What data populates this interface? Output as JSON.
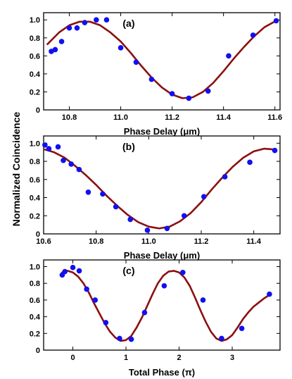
{
  "figure": {
    "ylabel": "Normalized Coincidence",
    "colors": {
      "fit": "#8b1010",
      "points": "#1010f0",
      "axis": "#000000"
    }
  },
  "chart_data": [
    {
      "type": "scatter",
      "panel_label": "(a)",
      "xlabel": "Phase Delay (μm)",
      "xlim": [
        10.7,
        11.62
      ],
      "ylim": [
        0.0,
        1.08
      ],
      "xticks": [
        10.8,
        11.0,
        11.2,
        11.4,
        11.6
      ],
      "yticks": [
        0,
        0.2,
        0.4,
        0.6,
        0.8,
        1.0
      ],
      "xtick_labels": [
        "10.8",
        "11.0",
        "11.2",
        "11.4",
        "11.6"
      ],
      "ytick_labels": [
        "0",
        "0.2",
        "0.4",
        "0.6",
        "0.8",
        "1.0"
      ],
      "series": [
        {
          "kind": "points",
          "x": [
            10.73,
            10.745,
            10.77,
            10.8,
            10.83,
            10.86,
            10.905,
            10.945,
            11.0,
            11.06,
            11.12,
            11.2,
            11.265,
            11.34,
            11.42,
            11.515,
            11.605
          ],
          "y": [
            0.65,
            0.67,
            0.76,
            0.91,
            0.91,
            0.97,
            1.0,
            1.0,
            0.69,
            0.53,
            0.34,
            0.18,
            0.13,
            0.21,
            0.6,
            0.83,
            0.99
          ]
        },
        {
          "kind": "fit",
          "x": [
            10.715,
            10.76,
            10.8,
            10.84,
            10.88,
            10.92,
            10.96,
            11.0,
            11.04,
            11.08,
            11.12,
            11.16,
            11.2,
            11.24,
            11.28,
            11.32,
            11.36,
            11.4,
            11.44,
            11.48,
            11.52,
            11.56,
            11.605
          ],
          "y": [
            0.73,
            0.86,
            0.94,
            0.98,
            0.98,
            0.94,
            0.86,
            0.76,
            0.63,
            0.49,
            0.36,
            0.25,
            0.17,
            0.13,
            0.14,
            0.2,
            0.3,
            0.43,
            0.57,
            0.7,
            0.82,
            0.92,
            0.99
          ]
        }
      ]
    },
    {
      "type": "scatter",
      "panel_label": "(b)",
      "xlabel": "Phase Delay (μm)",
      "xlim": [
        10.6,
        11.5
      ],
      "ylim": [
        0.0,
        1.08
      ],
      "xticks": [
        10.6,
        10.8,
        11.0,
        11.2,
        11.4
      ],
      "yticks": [
        0,
        0.2,
        0.4,
        0.6,
        0.8,
        1.0
      ],
      "xtick_labels": [
        "10.6",
        "10.8",
        "11.0",
        "11.2",
        "11.4"
      ],
      "ytick_labels": [
        "0",
        "0.2",
        "0.4",
        "0.6",
        "0.8",
        "1.0"
      ],
      "series": [
        {
          "kind": "points",
          "x": [
            10.605,
            10.62,
            10.655,
            10.675,
            10.705,
            10.735,
            10.77,
            10.825,
            10.875,
            10.93,
            10.995,
            11.07,
            11.135,
            11.21,
            11.29,
            11.385,
            11.48
          ],
          "y": [
            0.98,
            0.94,
            0.96,
            0.81,
            0.77,
            0.71,
            0.46,
            0.44,
            0.3,
            0.16,
            0.04,
            0.06,
            0.2,
            0.41,
            0.63,
            0.79,
            0.92
          ]
        },
        {
          "kind": "fit",
          "x": [
            10.605,
            10.64,
            10.68,
            10.72,
            10.76,
            10.8,
            10.84,
            10.88,
            10.92,
            10.96,
            11.0,
            11.04,
            11.08,
            11.12,
            11.16,
            11.2,
            11.24,
            11.28,
            11.32,
            11.36,
            11.4,
            11.44,
            11.48
          ],
          "y": [
            0.93,
            0.9,
            0.84,
            0.75,
            0.65,
            0.54,
            0.42,
            0.31,
            0.21,
            0.13,
            0.08,
            0.06,
            0.08,
            0.14,
            0.23,
            0.35,
            0.49,
            0.62,
            0.74,
            0.84,
            0.91,
            0.94,
            0.93
          ]
        }
      ]
    },
    {
      "type": "scatter",
      "panel_label": "(c)",
      "xlabel": "Total Phase (π)",
      "xlim": [
        -0.55,
        3.9
      ],
      "ylim": [
        0.0,
        1.08
      ],
      "xticks": [
        0,
        1,
        2,
        3
      ],
      "yticks": [
        0,
        0.2,
        0.4,
        0.6,
        0.8,
        1.0
      ],
      "xtick_labels": [
        "0",
        "1",
        "2",
        "3"
      ],
      "ytick_labels": [
        "0",
        "0.2",
        "0.4",
        "0.6",
        "0.8",
        "1.0"
      ],
      "series": [
        {
          "kind": "points",
          "x": [
            -0.2,
            -0.15,
            0.0,
            0.12,
            0.26,
            0.42,
            0.62,
            0.88,
            1.1,
            1.35,
            1.72,
            2.07,
            2.45,
            2.8,
            3.18,
            3.7
          ],
          "y": [
            0.9,
            0.94,
            0.99,
            0.95,
            0.73,
            0.6,
            0.33,
            0.14,
            0.13,
            0.45,
            0.77,
            0.93,
            0.6,
            0.14,
            0.26,
            0.67
          ]
        },
        {
          "kind": "fit",
          "x": [
            -0.2,
            -0.1,
            0.0,
            0.1,
            0.2,
            0.3,
            0.4,
            0.5,
            0.6,
            0.7,
            0.8,
            0.9,
            1.0,
            1.1,
            1.2,
            1.3,
            1.4,
            1.5,
            1.6,
            1.7,
            1.8,
            1.9,
            2.0,
            2.1,
            2.2,
            2.3,
            2.4,
            2.5,
            2.6,
            2.7,
            2.8,
            2.9,
            3.0,
            3.1,
            3.2,
            3.3,
            3.4,
            3.5,
            3.6,
            3.7
          ],
          "y": [
            0.93,
            0.95,
            0.93,
            0.88,
            0.8,
            0.69,
            0.56,
            0.44,
            0.32,
            0.22,
            0.15,
            0.11,
            0.12,
            0.17,
            0.27,
            0.39,
            0.53,
            0.67,
            0.8,
            0.89,
            0.94,
            0.95,
            0.93,
            0.87,
            0.77,
            0.63,
            0.48,
            0.34,
            0.22,
            0.14,
            0.11,
            0.13,
            0.18,
            0.27,
            0.37,
            0.45,
            0.52,
            0.57,
            0.62,
            0.66
          ]
        }
      ]
    }
  ]
}
